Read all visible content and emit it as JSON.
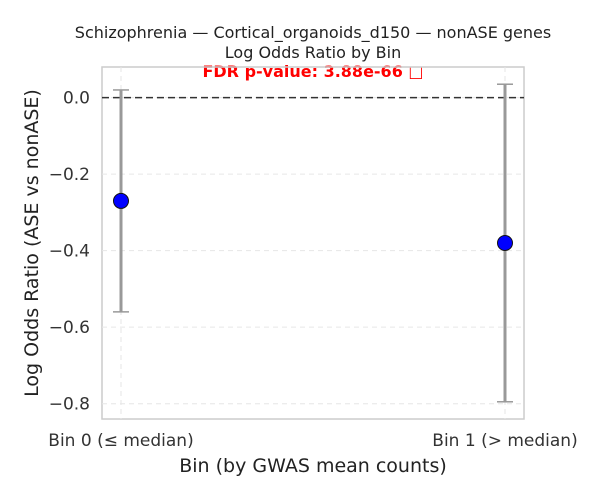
{
  "chart_data": {
    "type": "scatter",
    "title_lines": [
      "Schizophrenia — Cortical_organoids_d150 — nonASE genes",
      "Log Odds Ratio by Bin"
    ],
    "annotation": {
      "text": "FDR p-value: 3.88e-66 □",
      "color": "#ff0000"
    },
    "xlabel": "Bin (by GWAS mean counts)",
    "ylabel": "Log Odds Ratio (ASE vs nonASE)",
    "categories": [
      "Bin 0 (≤ median)",
      "Bin 1 (> median)"
    ],
    "series": [
      {
        "values": [
          -0.27,
          -0.38
        ],
        "ci_low": [
          -0.56,
          -0.795
        ],
        "ci_high": [
          0.02,
          0.035
        ],
        "marker_color": "#0000ff",
        "error_color": "#999999"
      }
    ],
    "yticks": [
      0.0,
      -0.2,
      -0.4,
      -0.6,
      -0.8
    ],
    "ytick_labels": [
      "0.0",
      "−0.2",
      "−0.4",
      "−0.6",
      "−0.8"
    ],
    "ylim": [
      -0.84,
      0.08
    ],
    "reference_line": {
      "y": 0,
      "style": "dashed",
      "color": "#333333"
    },
    "grid": true
  }
}
